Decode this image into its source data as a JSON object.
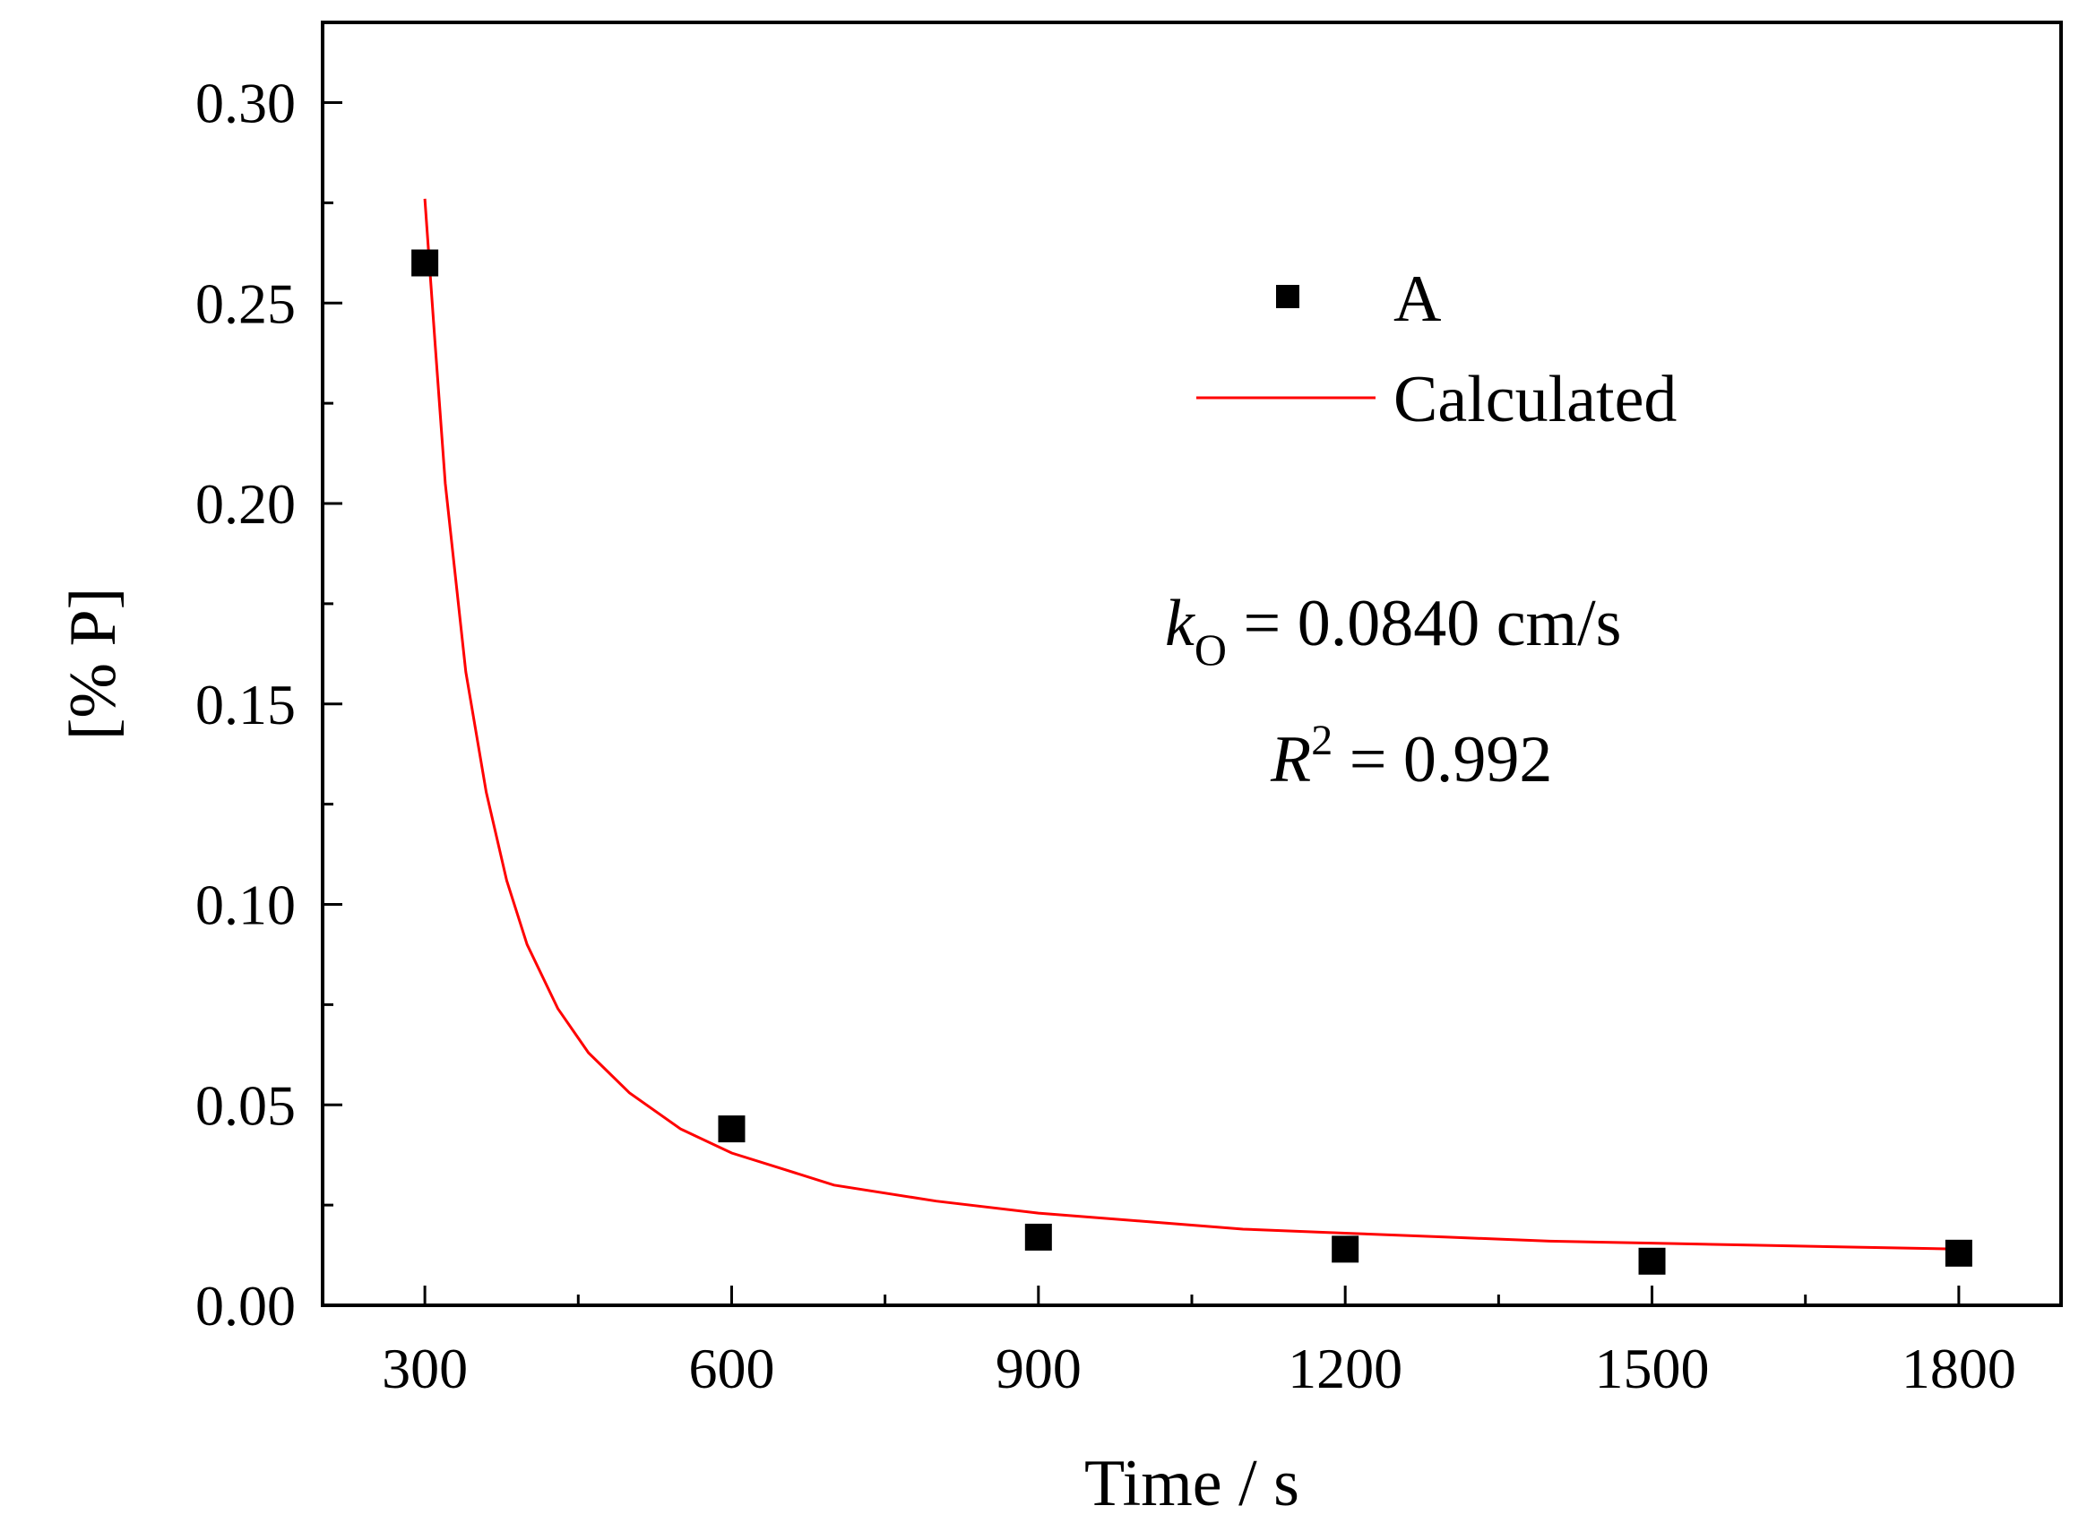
{
  "chart_data": {
    "type": "scatter",
    "xlabel": "Time / s",
    "ylabel": "[% P]",
    "xlim": [
      200,
      1900
    ],
    "ylim": [
      0,
      0.32
    ],
    "x_ticks": [
      300,
      600,
      900,
      1200,
      1500,
      1800
    ],
    "y_ticks": [
      0.0,
      0.05,
      0.1,
      0.15,
      0.2,
      0.25,
      0.3
    ],
    "x_tick_labels": [
      "300",
      "600",
      "900",
      "1200",
      "1500",
      "1800"
    ],
    "y_tick_labels": [
      "0.00",
      "0.05",
      "0.10",
      "0.15",
      "0.20",
      "0.25",
      "0.30"
    ],
    "series": [
      {
        "name": "A",
        "kind": "scatter",
        "marker": "square",
        "color": "#000000",
        "points": [
          {
            "x": 300,
            "y": 0.26
          },
          {
            "x": 600,
            "y": 0.044
          },
          {
            "x": 900,
            "y": 0.017
          },
          {
            "x": 1200,
            "y": 0.014
          },
          {
            "x": 1500,
            "y": 0.011
          },
          {
            "x": 1800,
            "y": 0.013
          }
        ]
      },
      {
        "name": "Calculated",
        "kind": "line",
        "color": "#ff0000",
        "points": [
          {
            "x": 300,
            "y": 0.276
          },
          {
            "x": 310,
            "y": 0.24
          },
          {
            "x": 320,
            "y": 0.205
          },
          {
            "x": 340,
            "y": 0.158
          },
          {
            "x": 360,
            "y": 0.128
          },
          {
            "x": 380,
            "y": 0.106
          },
          {
            "x": 400,
            "y": 0.09
          },
          {
            "x": 430,
            "y": 0.074
          },
          {
            "x": 460,
            "y": 0.063
          },
          {
            "x": 500,
            "y": 0.053
          },
          {
            "x": 550,
            "y": 0.044
          },
          {
            "x": 600,
            "y": 0.038
          },
          {
            "x": 650,
            "y": 0.034
          },
          {
            "x": 700,
            "y": 0.03
          },
          {
            "x": 800,
            "y": 0.026
          },
          {
            "x": 900,
            "y": 0.023
          },
          {
            "x": 1000,
            "y": 0.021
          },
          {
            "x": 1100,
            "y": 0.019
          },
          {
            "x": 1200,
            "y": 0.018
          },
          {
            "x": 1300,
            "y": 0.017
          },
          {
            "x": 1400,
            "y": 0.016
          },
          {
            "x": 1500,
            "y": 0.0155
          },
          {
            "x": 1600,
            "y": 0.015
          },
          {
            "x": 1700,
            "y": 0.0145
          },
          {
            "x": 1800,
            "y": 0.014
          }
        ]
      }
    ],
    "legend": {
      "placement": "top-right",
      "entries": [
        {
          "label": "A",
          "kind": "square"
        },
        {
          "label": "Calculated",
          "kind": "line"
        }
      ]
    },
    "annotations": {
      "k_symbol": "k",
      "k_subscript": "O",
      "k_rest": " = 0.0840 cm/s",
      "r_symbol": "R",
      "r_superscript": "2",
      "r_rest": " = 0.992"
    }
  }
}
